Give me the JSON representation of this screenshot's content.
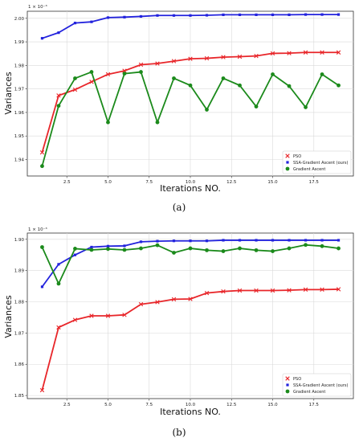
{
  "chart_data": [
    {
      "type": "line",
      "panel_label": "(a)",
      "xlabel": "Iterations NO.",
      "ylabel": "Variances",
      "y_multiplier": "1 × 10⁻³",
      "xlim": [
        0.1,
        19.9
      ],
      "ylim": [
        1.933,
        2.003
      ],
      "xticks": [
        "2.5",
        "5.0",
        "7.5",
        "10.0",
        "12.5",
        "15.0",
        "17.5"
      ],
      "xtick_values": [
        2.5,
        5.0,
        7.5,
        10.0,
        12.5,
        15.0,
        17.5
      ],
      "yticks": [
        "1.94",
        "1.95",
        "1.96",
        "1.97",
        "1.98",
        "1.99",
        "2.00"
      ],
      "ytick_values": [
        1.94,
        1.95,
        1.96,
        1.97,
        1.98,
        1.99,
        2.0
      ],
      "grid": true,
      "legend_position": "bottom-right",
      "x": [
        1,
        2,
        3,
        4,
        5,
        6,
        7,
        8,
        9,
        10,
        11,
        12,
        13,
        14,
        15,
        16,
        17,
        18,
        19
      ],
      "series": [
        {
          "name": "PSO",
          "color": "#e8262a",
          "marker": "x",
          "values": [
            1.943,
            1.9672,
            1.9697,
            1.973,
            1.9762,
            1.9777,
            1.9803,
            1.9808,
            1.9818,
            1.9828,
            1.983,
            1.9835,
            1.9837,
            1.984,
            1.9851,
            1.9852,
            1.9855,
            1.9855,
            1.9855
          ]
        },
        {
          "name": "SSA-Gradient Ascent (ours)",
          "color": "#2222dd",
          "marker": "square",
          "values": [
            1.9915,
            1.9939,
            1.998,
            1.9985,
            2.0003,
            2.0005,
            2.0008,
            2.0012,
            2.0012,
            2.0012,
            2.0013,
            2.0015,
            2.0015,
            2.0015,
            2.0015,
            2.0015,
            2.0016,
            2.0016,
            2.0016
          ]
        },
        {
          "name": "Gradient Ascent",
          "color": "#1b8a1b",
          "marker": "circle",
          "values": [
            1.9372,
            1.9628,
            1.9745,
            1.9772,
            1.9558,
            1.9765,
            1.9772,
            1.9558,
            1.9745,
            1.9715,
            1.9612,
            1.9745,
            1.9715,
            1.9625,
            1.9762,
            1.9712,
            1.9622,
            1.9762,
            1.9715
          ]
        }
      ]
    },
    {
      "type": "line",
      "panel_label": "(b)",
      "xlabel": "Iterations NO.",
      "ylabel": "Variances",
      "y_multiplier": "1 × 10⁻³",
      "xlim": [
        0.1,
        19.9
      ],
      "ylim": [
        1.849,
        1.902
      ],
      "xticks": [
        "2.5",
        "5.0",
        "7.5",
        "10.0",
        "12.5",
        "15.0",
        "17.5"
      ],
      "xtick_values": [
        2.5,
        5.0,
        7.5,
        10.0,
        12.5,
        15.0,
        17.5
      ],
      "yticks": [
        "1.85",
        "1.86",
        "1.87",
        "1.88",
        "1.89",
        "1.90"
      ],
      "ytick_values": [
        1.85,
        1.86,
        1.87,
        1.88,
        1.89,
        1.9
      ],
      "grid": true,
      "legend_position": "bottom-right",
      "x": [
        1,
        2,
        3,
        4,
        5,
        6,
        7,
        8,
        9,
        10,
        11,
        12,
        13,
        14,
        15,
        16,
        17,
        18,
        19
      ],
      "series": [
        {
          "name": "PSO",
          "color": "#e8262a",
          "marker": "x",
          "values": [
            1.8517,
            1.8718,
            1.8742,
            1.8755,
            1.8755,
            1.8758,
            1.8792,
            1.8799,
            1.8808,
            1.8809,
            1.8828,
            1.8833,
            1.8836,
            1.8836,
            1.8836,
            1.8837,
            1.8839,
            1.8839,
            1.884
          ]
        },
        {
          "name": "SSA-Gradient Ascent (ours)",
          "color": "#2222dd",
          "marker": "square",
          "values": [
            1.8848,
            1.892,
            1.895,
            1.8975,
            1.8978,
            1.8979,
            1.8992,
            1.8994,
            1.8995,
            1.8995,
            1.8995,
            1.8997,
            1.8997,
            1.8997,
            1.8997,
            1.8997,
            1.8997,
            1.8997,
            1.8997
          ]
        },
        {
          "name": "Gradient Ascent",
          "color": "#1b8a1b",
          "marker": "circle",
          "values": [
            1.8975,
            1.8858,
            1.897,
            1.8966,
            1.8969,
            1.8966,
            1.8971,
            1.8981,
            1.8957,
            1.8971,
            1.8965,
            1.8962,
            1.8971,
            1.8965,
            1.8962,
            1.8971,
            1.8982,
            1.8978,
            1.8971
          ]
        }
      ]
    }
  ]
}
